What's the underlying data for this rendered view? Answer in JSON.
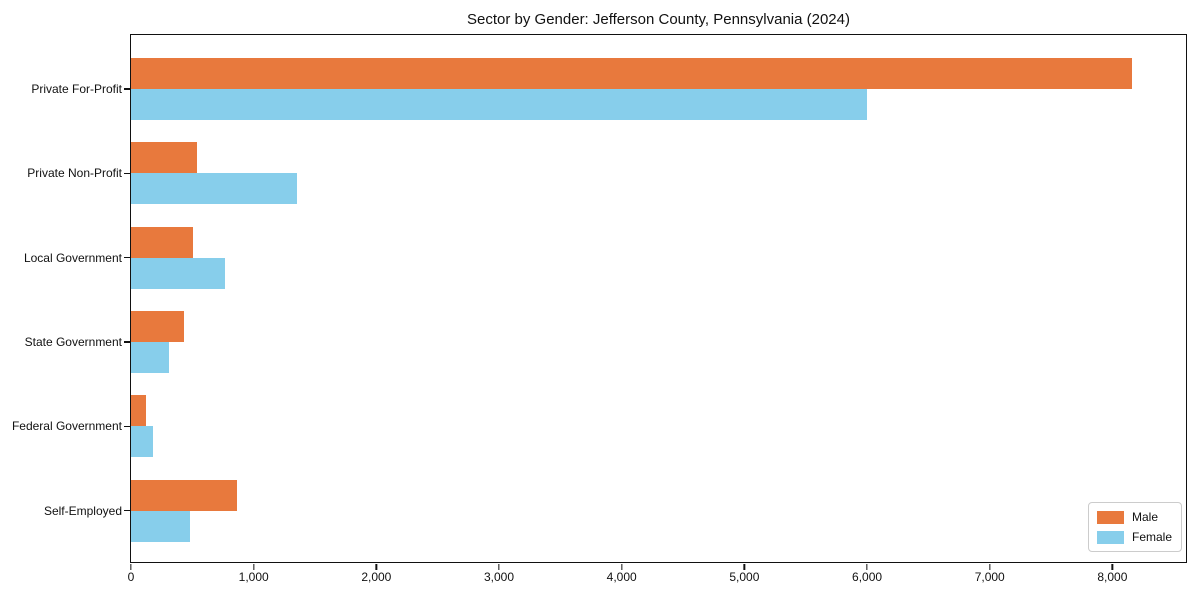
{
  "chart_data": {
    "type": "bar",
    "orientation": "horizontal",
    "title": "Sector by Gender: Jefferson County, Pennsylvania (2024)",
    "categories": [
      "Private For-Profit",
      "Private Non-Profit",
      "Local Government",
      "State Government",
      "Federal Government",
      "Self-Employed"
    ],
    "series": [
      {
        "name": "Male",
        "color": "#E8793D",
        "values": [
          8160,
          540,
          505,
          430,
          125,
          860
        ]
      },
      {
        "name": "Female",
        "color": "#87CEEB",
        "values": [
          6000,
          1350,
          765,
          310,
          180,
          480
        ]
      }
    ],
    "xlabel": "",
    "ylabel": "",
    "xlim": [
      0,
      8600
    ],
    "xticks": [
      0,
      1000,
      2000,
      3000,
      4000,
      5000,
      6000,
      7000,
      8000
    ],
    "xtick_labels": [
      "0",
      "1,000",
      "2,000",
      "3,000",
      "4,000",
      "5,000",
      "6,000",
      "7,000",
      "8,000"
    ],
    "grid": false,
    "legend_position": "lower right"
  }
}
